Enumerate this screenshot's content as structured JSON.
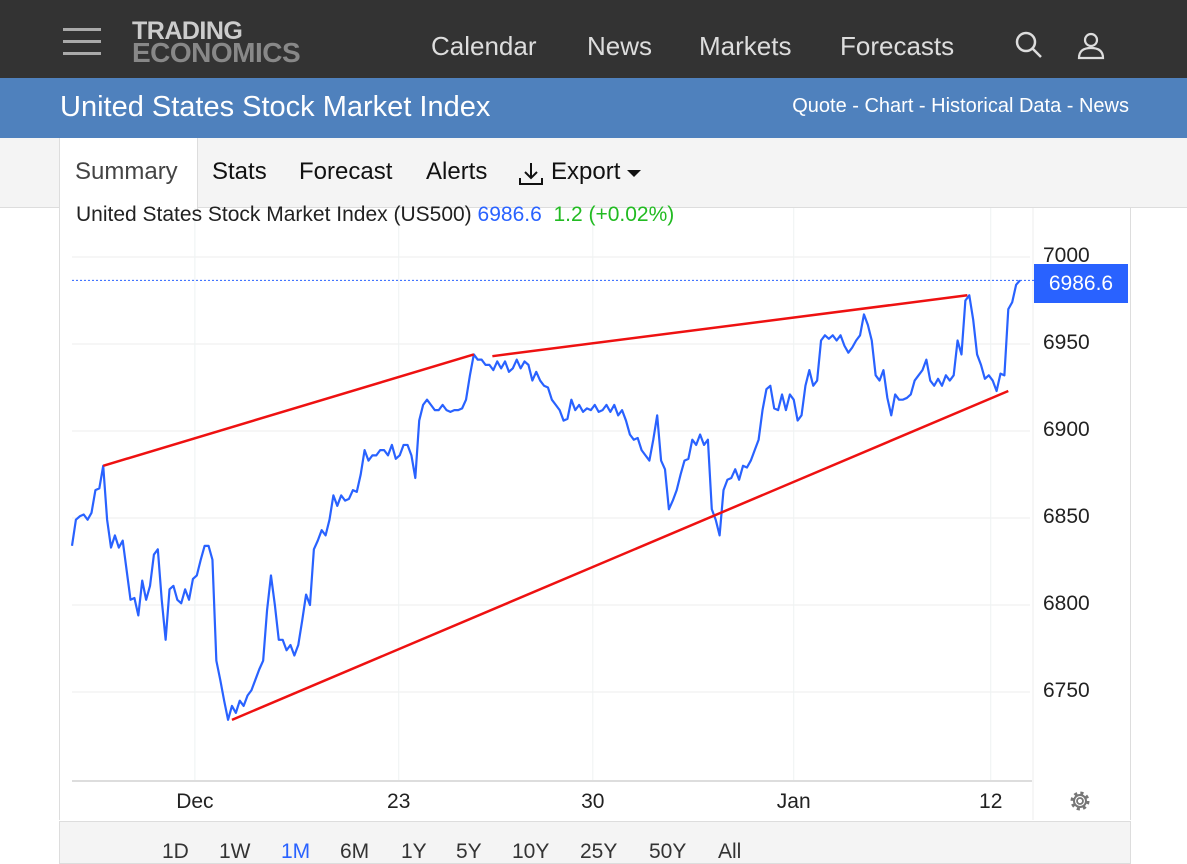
{
  "header": {
    "logo_line1": "TRADING",
    "logo_line2": "ECONOMICS",
    "nav": [
      "Calendar",
      "News",
      "Markets",
      "Forecasts"
    ]
  },
  "title_bar": {
    "title": "United States Stock Market Index",
    "links": [
      "Quote",
      "Chart",
      "Historical Data",
      "News"
    ],
    "sep": " - "
  },
  "tabs": [
    "Summary",
    "Stats",
    "Forecast",
    "Alerts",
    "Export"
  ],
  "legend": {
    "name": "United States Stock Market Index (US500)",
    "price": "6986.6",
    "change": "1.2 (+0.02%)"
  },
  "ranges": [
    "1D",
    "1W",
    "1M",
    "6M",
    "1Y",
    "5Y",
    "10Y",
    "25Y",
    "50Y",
    "All"
  ],
  "active_range": "1M",
  "colors": {
    "line": "#2962ff",
    "trend": "#ee1111",
    "up": "#22bb22",
    "header": "#333333",
    "bluebar": "#4f81bd"
  },
  "chart_data": {
    "type": "line",
    "title": "United States Stock Market Index (US500)",
    "last_value_label": "6986.6",
    "ylim": [
      6705,
      7020
    ],
    "yticks": [
      7000,
      6950,
      6900,
      6850,
      6800,
      6750
    ],
    "ytick_labels": [
      "7000",
      "6950",
      "6900",
      "6850",
      "6800",
      "6750"
    ],
    "xticks": [
      {
        "idx": 31.5,
        "label": "Dec"
      },
      {
        "idx": 83.75,
        "label": "23"
      },
      {
        "idx": 133.5,
        "label": "30"
      },
      {
        "idx": 185,
        "label": "Jan"
      },
      {
        "idx": 235.5,
        "label": "12"
      }
    ],
    "last_value": 6986.6,
    "values": [
      6834,
      6849,
      6851,
      6852,
      6849,
      6853,
      6866,
      6867,
      6880,
      6849,
      6833,
      6840,
      6833,
      6837,
      6820,
      6803,
      6804,
      6794,
      6814,
      6803,
      6811,
      6829,
      6832,
      6803,
      6780,
      6809,
      6811,
      6803,
      6801,
      6809,
      6803,
      6815,
      6817,
      6826,
      6834,
      6834,
      6826,
      6768,
      6757,
      6745,
      6734,
      6742,
      6738,
      6745,
      6742,
      6748,
      6751,
      6757,
      6763,
      6768,
      6797,
      6817,
      6800,
      6780,
      6780,
      6774,
      6777,
      6771,
      6777,
      6791,
      6806,
      6800,
      6832,
      6837,
      6843,
      6840,
      6849,
      6863,
      6857,
      6863,
      6860,
      6861,
      6866,
      6865,
      6875,
      6889,
      6883,
      6886,
      6886,
      6889,
      6889,
      6886,
      6892,
      6884,
      6886,
      6892,
      6892,
      6886,
      6873,
      6906,
      6915,
      6918,
      6915,
      6912,
      6912,
      6915,
      6912,
      6911,
      6912,
      6912,
      6913,
      6918,
      6932,
      6944,
      6941,
      6941,
      6938,
      6938,
      6935,
      6940,
      6936,
      6940,
      6934,
      6936,
      6941,
      6936,
      6940,
      6938,
      6929,
      6934,
      6929,
      6926,
      6925,
      6918,
      6915,
      6912,
      6906,
      6907,
      6918,
      6912,
      6915,
      6911,
      6913,
      6912,
      6915,
      6911,
      6912,
      6915,
      6911,
      6915,
      6909,
      6912,
      6906,
      6898,
      6895,
      6896,
      6889,
      6886,
      6883,
      6895,
      6909,
      6883,
      6878,
      6855,
      6860,
      6866,
      6875,
      6883,
      6884,
      6895,
      6892,
      6898,
      6892,
      6895,
      6855,
      6849,
      6840,
      6866,
      6872,
      6873,
      6878,
      6872,
      6880,
      6879,
      6883,
      6889,
      6895,
      6912,
      6924,
      6926,
      6913,
      6912,
      6921,
      6912,
      6921,
      6918,
      6906,
      6909,
      6926,
      6935,
      6926,
      6929,
      6952,
      6955,
      6953,
      6955,
      6952,
      6955,
      6949,
      6945,
      6948,
      6952,
      6955,
      6967,
      6961,
      6952,
      6932,
      6929,
      6935,
      6919,
      6909,
      6921,
      6918,
      6918,
      6919,
      6921,
      6929,
      6932,
      6935,
      6941,
      6929,
      6926,
      6930,
      6926,
      6932,
      6929,
      6932,
      6952,
      6944,
      6975,
      6978,
      6964,
      6944,
      6938,
      6930,
      6932,
      6929,
      6923,
      6933,
      6932,
      6970,
      6974,
      6984,
      6986.6
    ],
    "trendlines": [
      {
        "from": [
          8,
          6880
        ],
        "to": [
          103,
          6944
        ]
      },
      {
        "from": [
          107.75,
          6943
        ],
        "to": [
          229.5,
          6978
        ]
      },
      {
        "from": [
          41,
          6734
        ],
        "to": [
          240,
          6923
        ]
      }
    ],
    "grid": true
  }
}
